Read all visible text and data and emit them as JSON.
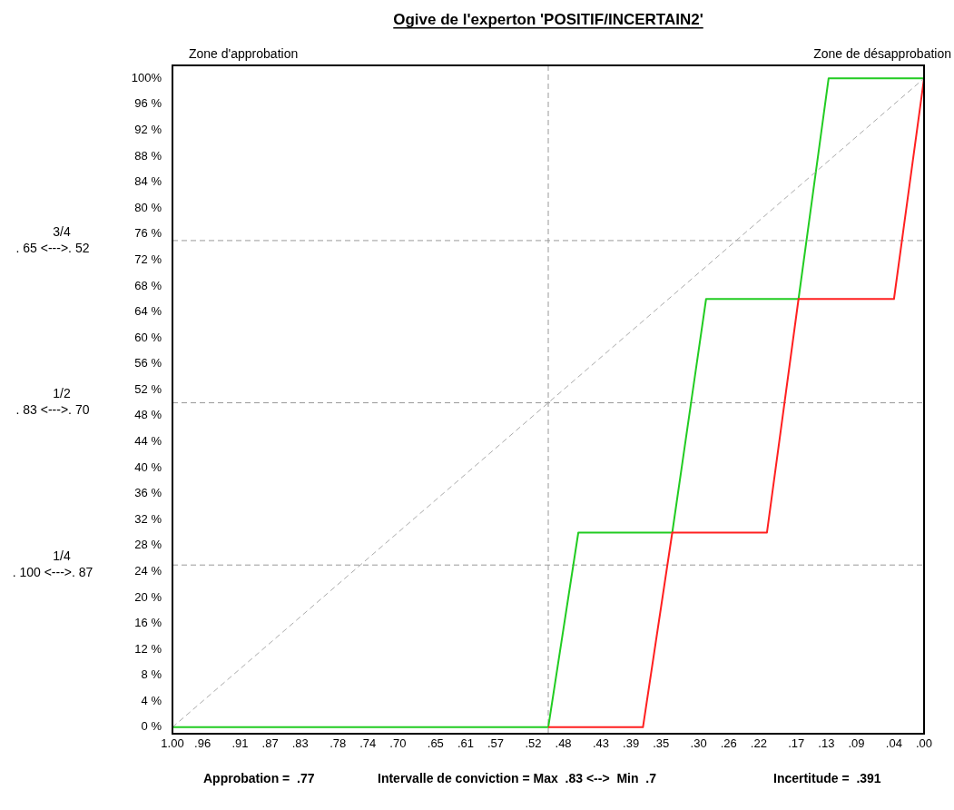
{
  "chart_data": {
    "type": "line",
    "title": "Ogive de l'experton 'POSITIF/INCERTAIN2'",
    "xlim": [
      1,
      0
    ],
    "ylim": [
      -1,
      102
    ],
    "xticks": [
      {
        "value": 1,
        "label": "1.00"
      },
      {
        "value": 0.96,
        "label": ".96"
      },
      {
        "value": 0.91,
        "label": ".91"
      },
      {
        "value": 0.87,
        "label": ".87"
      },
      {
        "value": 0.83,
        "label": ".83"
      },
      {
        "value": 0.78,
        "label": ".78"
      },
      {
        "value": 0.74,
        "label": ".74"
      },
      {
        "value": 0.7,
        "label": ".70"
      },
      {
        "value": 0.65,
        "label": ".65"
      },
      {
        "value": 0.61,
        "label": ".61"
      },
      {
        "value": 0.57,
        "label": ".57"
      },
      {
        "value": 0.52,
        "label": ".52"
      },
      {
        "value": 0.48,
        "label": ".48"
      },
      {
        "value": 0.43,
        "label": ".43"
      },
      {
        "value": 0.39,
        "label": ".39"
      },
      {
        "value": 0.35,
        "label": ".35"
      },
      {
        "value": 0.3,
        "label": ".30"
      },
      {
        "value": 0.26,
        "label": ".26"
      },
      {
        "value": 0.22,
        "label": ".22"
      },
      {
        "value": 0.17,
        "label": ".17"
      },
      {
        "value": 0.13,
        "label": ".13"
      },
      {
        "value": 0.09,
        "label": ".09"
      },
      {
        "value": 0.04,
        "label": ".04"
      },
      {
        "value": 0,
        "label": ".00"
      }
    ],
    "yticks": [
      {
        "value": 0,
        "label": "0 %"
      },
      {
        "value": 4,
        "label": "4 %"
      },
      {
        "value": 8,
        "label": "8 %"
      },
      {
        "value": 12,
        "label": "12 %"
      },
      {
        "value": 16,
        "label": "16 %"
      },
      {
        "value": 20,
        "label": "20 %"
      },
      {
        "value": 24,
        "label": "24 %"
      },
      {
        "value": 28,
        "label": "28 %"
      },
      {
        "value": 32,
        "label": "32 %"
      },
      {
        "value": 36,
        "label": "36 %"
      },
      {
        "value": 40,
        "label": "40 %"
      },
      {
        "value": 44,
        "label": "44 %"
      },
      {
        "value": 48,
        "label": "48 %"
      },
      {
        "value": 52,
        "label": "52 %"
      },
      {
        "value": 56,
        "label": "56 %"
      },
      {
        "value": 60,
        "label": "60 %"
      },
      {
        "value": 64,
        "label": "64 %"
      },
      {
        "value": 68,
        "label": "68 %"
      },
      {
        "value": 72,
        "label": "72 %"
      },
      {
        "value": 76,
        "label": "76 %"
      },
      {
        "value": 80,
        "label": "80 %"
      },
      {
        "value": 84,
        "label": "84 %"
      },
      {
        "value": 88,
        "label": "88 %"
      },
      {
        "value": 92,
        "label": "92 %"
      },
      {
        "value": 96,
        "label": "96 %"
      },
      {
        "value": 100,
        "label": "100%"
      }
    ],
    "series": [
      {
        "color": "#aaaaaa",
        "line_style": "dashed",
        "x": [
          1,
          0
        ],
        "values": [
          0,
          100
        ]
      },
      {
        "color": "#ff2020",
        "x": [
          0.5,
          0.374,
          0.335,
          0.209,
          0.167,
          0.04,
          0
        ],
        "values": [
          0,
          0,
          30,
          30,
          66,
          66,
          100
        ]
      },
      {
        "color": "#22cc22",
        "x": [
          1,
          0.5,
          0.46,
          0.335,
          0.29,
          0.167,
          0.127,
          0
        ],
        "values": [
          0,
          0,
          30,
          30,
          66,
          66,
          100,
          100
        ]
      }
    ],
    "ref_lines": [
      {
        "axis": "x",
        "value": 0.5,
        "color": "#999999",
        "line_style": "dashed"
      },
      {
        "axis": "y",
        "value": 75,
        "color": "#999999",
        "line_style": "dashed"
      },
      {
        "axis": "y",
        "value": 50,
        "color": "#999999",
        "line_style": "dashed"
      },
      {
        "axis": "y",
        "value": 25,
        "color": "#999999",
        "line_style": "dashed"
      }
    ],
    "annotations": [
      "Zone d'approbation",
      "Zone de désapprobation",
      "3/4",
      ". 65 <--->. 52",
      "1/2",
      ". 83 <--->. 70",
      "1/4",
      ". 100 <--->. 87",
      "Approbation =  .77",
      "Intervalle de conviction = Max  .83 <-->  Min  .7",
      "Incertitude =  .391"
    ],
    "grid": false,
    "legend": false,
    "marker": "none"
  }
}
